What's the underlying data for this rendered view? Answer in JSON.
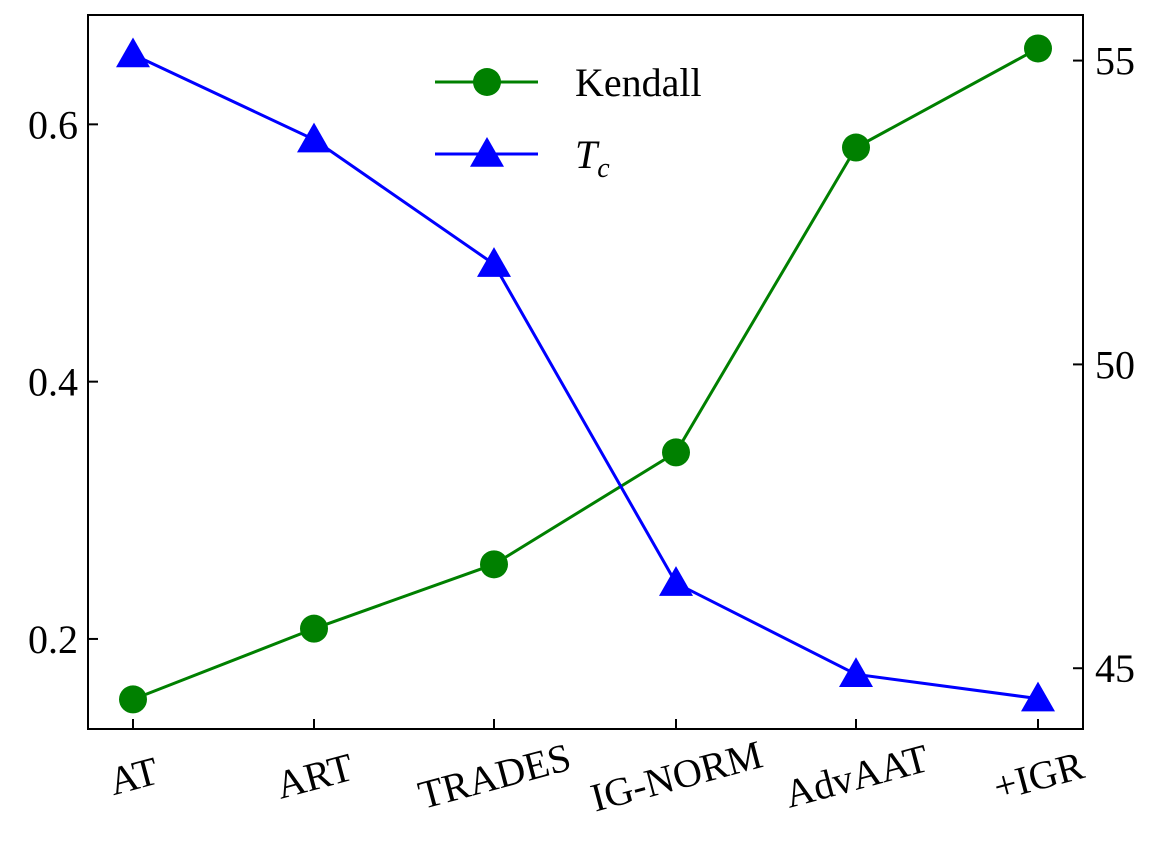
{
  "chart_data": {
    "type": "line",
    "categories": [
      "AT",
      "ART",
      "TRADES",
      "IG-NORM",
      "AdvAAT",
      "+IGR"
    ],
    "series": [
      {
        "name": "Kendall",
        "axis": "left",
        "color": "#008000",
        "marker": "circle",
        "values": [
          0.153,
          0.208,
          0.258,
          0.345,
          0.582,
          0.659
        ]
      },
      {
        "name": "T",
        "name_subscript": "c",
        "axis": "right",
        "color": "#0000ff",
        "marker": "triangle",
        "values": [
          55.1,
          53.7,
          51.65,
          46.4,
          44.9,
          44.5
        ]
      }
    ],
    "y_left": {
      "ticks": [
        0.2,
        0.4,
        0.6
      ],
      "tick_labels": [
        "0.2",
        "0.4",
        "0.6"
      ],
      "ylim": [
        0.13,
        0.685
      ]
    },
    "y_right": {
      "ticks": [
        45,
        50,
        55
      ],
      "tick_labels": [
        "45",
        "50",
        "55"
      ],
      "ylim": [
        44.0,
        55.75
      ]
    },
    "title": "",
    "xlabel": "",
    "ylabel_left": "",
    "ylabel_right": "",
    "grid": false,
    "legend": "top-center"
  }
}
